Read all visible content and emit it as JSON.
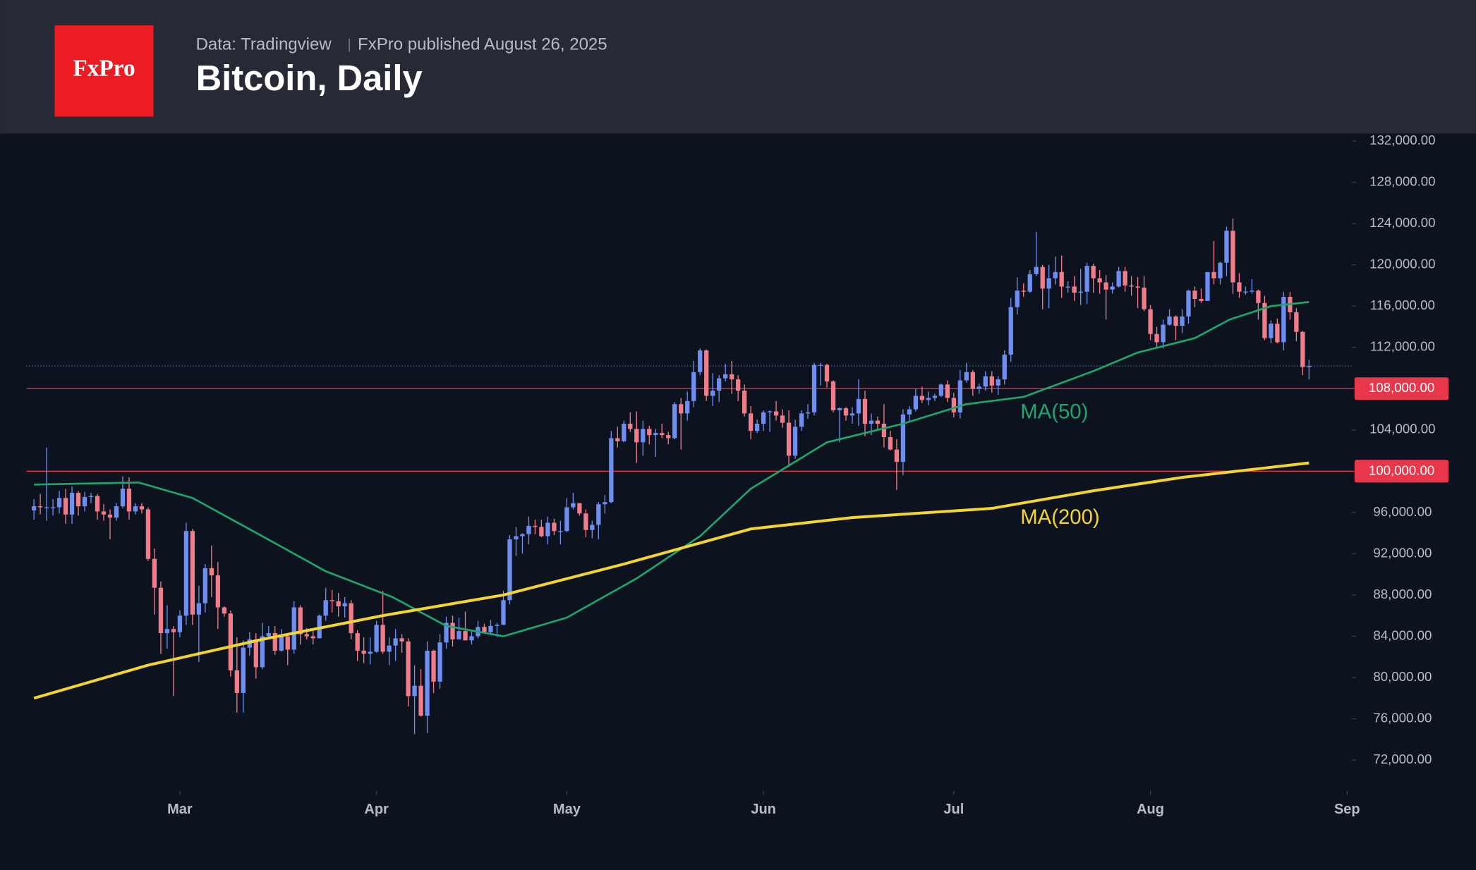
{
  "header": {
    "logo": "FxPro",
    "source": "Data: Tradingview",
    "publisher": "FxPro published August 26, 2025"
  },
  "chart_data": {
    "type": "candlestick",
    "title": "Bitcoin, Daily",
    "up_color": "#6f8ef2",
    "down_color": "#f27d8a",
    "xlim": [
      -2,
      207.5
    ],
    "ylim": [
      69000,
      133000
    ],
    "xticks": [
      {
        "value": 23,
        "label": "Mar"
      },
      {
        "value": 54,
        "label": "Apr"
      },
      {
        "value": 84,
        "label": "May"
      },
      {
        "value": 115,
        "label": "Jun"
      },
      {
        "value": 145,
        "label": "Jul"
      },
      {
        "value": 176,
        "label": "Aug"
      },
      {
        "value": 207,
        "label": "Sep"
      }
    ],
    "yticks": [
      {
        "value": 72000,
        "label": "72,000.00"
      },
      {
        "value": 76000,
        "label": "76,000.00"
      },
      {
        "value": 80000,
        "label": "80,000.00"
      },
      {
        "value": 84000,
        "label": "84,000.00"
      },
      {
        "value": 88000,
        "label": "88,000.00"
      },
      {
        "value": 92000,
        "label": "92,000.00"
      },
      {
        "value": 96000,
        "label": "96,000.00"
      },
      {
        "value": 100000,
        "label": "100,000.00"
      },
      {
        "value": 104000,
        "label": "104,000.00"
      },
      {
        "value": 108000,
        "label": "108,000.00"
      },
      {
        "value": 112000,
        "label": "112,000.00"
      },
      {
        "value": 116000,
        "label": "116,000.00"
      },
      {
        "value": 120000,
        "label": "120,000.00"
      },
      {
        "value": 124000,
        "label": "124,000.00"
      },
      {
        "value": 128000,
        "label": "128,000.00"
      },
      {
        "value": 132000,
        "label": "132,000.00"
      }
    ],
    "levels": [
      {
        "value": 108000,
        "label": "108,000.00",
        "color": "#e8364a"
      },
      {
        "value": 100000,
        "label": "100,000.00",
        "color": "#e8364a"
      }
    ],
    "candles": [
      [
        96200,
        97300,
        95300,
        96600
      ],
      [
        96600,
        97800,
        95800,
        96500
      ],
      [
        96500,
        102300,
        95200,
        96500
      ],
      [
        96500,
        97300,
        95700,
        96500
      ],
      [
        96500,
        98100,
        95900,
        97400
      ],
      [
        97400,
        98300,
        94900,
        95800
      ],
      [
        95800,
        98500,
        94900,
        97900
      ],
      [
        97900,
        98100,
        95700,
        96600
      ],
      [
        96600,
        98000,
        96100,
        97500
      ],
      [
        97500,
        97900,
        96900,
        97600
      ],
      [
        97600,
        97800,
        95300,
        96100
      ],
      [
        96100,
        96800,
        95200,
        95800
      ],
      [
        95800,
        96300,
        93400,
        95500
      ],
      [
        95500,
        96900,
        95200,
        96600
      ],
      [
        96600,
        99500,
        96400,
        98300
      ],
      [
        98300,
        99400,
        95300,
        96100
      ],
      [
        96100,
        96900,
        95800,
        96600
      ],
      [
        96600,
        96900,
        95900,
        96300
      ],
      [
        96300,
        96500,
        91300,
        91500
      ],
      [
        91500,
        92500,
        86100,
        88700
      ],
      [
        88700,
        89300,
        82300,
        84300
      ],
      [
        84300,
        87000,
        82800,
        84700
      ],
      [
        84700,
        85000,
        78200,
        84400
      ],
      [
        84400,
        86500,
        83900,
        86000
      ],
      [
        86000,
        95000,
        85100,
        94200
      ],
      [
        94200,
        94400,
        85100,
        86100
      ],
      [
        86100,
        88900,
        81500,
        87200
      ],
      [
        87200,
        91000,
        86300,
        90600
      ],
      [
        90600,
        92800,
        87800,
        89900
      ],
      [
        89900,
        91200,
        84700,
        86800
      ],
      [
        86800,
        86900,
        85900,
        86200
      ],
      [
        86200,
        86500,
        80100,
        80700
      ],
      [
        80700,
        83900,
        76600,
        78500
      ],
      [
        78500,
        83600,
        76600,
        82900
      ],
      [
        82900,
        84400,
        82100,
        83700
      ],
      [
        83700,
        84300,
        79900,
        81000
      ],
      [
        81000,
        85300,
        80800,
        84000
      ],
      [
        84000,
        85000,
        83700,
        84300
      ],
      [
        84300,
        85000,
        82200,
        82600
      ],
      [
        82600,
        84700,
        82500,
        84000
      ],
      [
        84000,
        84100,
        81200,
        82700
      ],
      [
        82700,
        87400,
        82300,
        86800
      ],
      [
        86800,
        87000,
        83200,
        84200
      ],
      [
        84200,
        84800,
        83700,
        84000
      ],
      [
        84000,
        84500,
        83200,
        83800
      ],
      [
        83800,
        86100,
        83800,
        86000
      ],
      [
        86000,
        88700,
        85500,
        87500
      ],
      [
        87500,
        88500,
        86300,
        87400
      ],
      [
        87400,
        88200,
        85900,
        86900
      ],
      [
        86900,
        87800,
        85800,
        87200
      ],
      [
        87200,
        87500,
        83700,
        84300
      ],
      [
        84300,
        84600,
        81600,
        82600
      ],
      [
        82600,
        83900,
        81400,
        82300
      ],
      [
        82300,
        83900,
        81300,
        82500
      ],
      [
        82500,
        85500,
        82400,
        85100
      ],
      [
        85100,
        88400,
        82300,
        82500
      ],
      [
        82500,
        83900,
        81200,
        83100
      ],
      [
        83100,
        84700,
        81600,
        83800
      ],
      [
        83800,
        84200,
        82400,
        83500
      ],
      [
        83500,
        83800,
        77200,
        78200
      ],
      [
        78200,
        81200,
        74500,
        79200
      ],
      [
        79200,
        80800,
        76200,
        76300
      ],
      [
        76300,
        83500,
        74600,
        82600
      ],
      [
        82600,
        82700,
        78500,
        79600
      ],
      [
        79600,
        84200,
        78900,
        83400
      ],
      [
        83400,
        85900,
        82800,
        85300
      ],
      [
        85300,
        86000,
        83000,
        83700
      ],
      [
        83700,
        85800,
        83700,
        84500
      ],
      [
        84500,
        86400,
        83600,
        83600
      ],
      [
        83600,
        84500,
        83200,
        84000
      ],
      [
        84000,
        85500,
        83800,
        84900
      ],
      [
        84900,
        85200,
        84300,
        84400
      ],
      [
        84400,
        85600,
        84300,
        85000
      ],
      [
        85000,
        85300,
        83900,
        85100
      ],
      [
        85100,
        88400,
        85100,
        87500
      ],
      [
        87500,
        93800,
        87100,
        93400
      ],
      [
        93400,
        94600,
        91800,
        93700
      ],
      [
        93700,
        94000,
        92000,
        93900
      ],
      [
        93900,
        95600,
        92900,
        94700
      ],
      [
        94700,
        95300,
        93900,
        94600
      ],
      [
        94600,
        95300,
        93600,
        93700
      ],
      [
        93700,
        95600,
        92900,
        95000
      ],
      [
        95000,
        95400,
        93800,
        94200
      ],
      [
        94200,
        95200,
        92900,
        94200
      ],
      [
        94200,
        97400,
        94100,
        96500
      ],
      [
        96500,
        97900,
        96300,
        96900
      ],
      [
        96900,
        96900,
        95700,
        95900
      ],
      [
        95900,
        96300,
        93600,
        94300
      ],
      [
        94300,
        95200,
        93500,
        94800
      ],
      [
        94800,
        97000,
        93400,
        96800
      ],
      [
        96800,
        97700,
        95900,
        97000
      ],
      [
        97000,
        103900,
        96900,
        103200
      ],
      [
        103200,
        104300,
        102300,
        102900
      ],
      [
        102900,
        104900,
        102800,
        104600
      ],
      [
        104600,
        105700,
        103800,
        104100
      ],
      [
        104100,
        105800,
        100800,
        102800
      ],
      [
        102800,
        104900,
        101500,
        104100
      ],
      [
        104100,
        104400,
        102600,
        103500
      ],
      [
        103500,
        104100,
        101400,
        103700
      ],
      [
        103700,
        104600,
        103200,
        103500
      ],
      [
        103500,
        103800,
        102600,
        103200
      ],
      [
        103200,
        106700,
        103100,
        106500
      ],
      [
        106500,
        107100,
        102100,
        105600
      ],
      [
        105600,
        107700,
        104900,
        106800
      ],
      [
        106800,
        110700,
        106200,
        109600
      ],
      [
        109600,
        111900,
        109300,
        111700
      ],
      [
        111700,
        111800,
        106800,
        107300
      ],
      [
        107300,
        109500,
        106300,
        107800
      ],
      [
        107800,
        109300,
        106700,
        109000
      ],
      [
        109000,
        110400,
        108700,
        109400
      ],
      [
        109400,
        110700,
        107500,
        108900
      ],
      [
        108900,
        109300,
        106800,
        107800
      ],
      [
        107800,
        108400,
        105300,
        105600
      ],
      [
        105600,
        106300,
        103100,
        103900
      ],
      [
        103900,
        105000,
        103700,
        104600
      ],
      [
        104600,
        105900,
        103900,
        105700
      ],
      [
        105700,
        105900,
        103800,
        105800
      ],
      [
        105800,
        106800,
        104900,
        105400
      ],
      [
        105400,
        106000,
        104200,
        104700
      ],
      [
        104700,
        105900,
        100400,
        101500
      ],
      [
        101500,
        105000,
        101200,
        104300
      ],
      [
        104300,
        105900,
        103900,
        105600
      ],
      [
        105600,
        106500,
        105100,
        105700
      ],
      [
        105700,
        110500,
        105400,
        110300
      ],
      [
        110300,
        110500,
        108300,
        110300
      ],
      [
        110300,
        110400,
        108100,
        108700
      ],
      [
        108700,
        108800,
        105700,
        105900
      ],
      [
        105900,
        106200,
        102800,
        106100
      ],
      [
        106100,
        106200,
        104900,
        105400
      ],
      [
        105400,
        106200,
        104600,
        105600
      ],
      [
        105600,
        108900,
        104400,
        107000
      ],
      [
        107000,
        107800,
        103400,
        104600
      ],
      [
        104600,
        105600,
        103500,
        104900
      ],
      [
        104900,
        105300,
        103900,
        104600
      ],
      [
        104600,
        106500,
        102300,
        103300
      ],
      [
        103300,
        103900,
        102000,
        102100
      ],
      [
        102100,
        103100,
        98200,
        100900
      ],
      [
        100900,
        106000,
        99600,
        105500
      ],
      [
        105500,
        106300,
        104700,
        106000
      ],
      [
        106000,
        108000,
        105800,
        107300
      ],
      [
        107300,
        108200,
        106600,
        106900
      ],
      [
        106900,
        107700,
        106400,
        107100
      ],
      [
        107100,
        107500,
        106800,
        107300
      ],
      [
        107300,
        108500,
        107200,
        108400
      ],
      [
        108400,
        108800,
        106700,
        107100
      ],
      [
        107100,
        107600,
        105200,
        105700
      ],
      [
        105700,
        109800,
        105100,
        108800
      ],
      [
        108800,
        110500,
        108600,
        109600
      ],
      [
        109600,
        109800,
        107300,
        108000
      ],
      [
        108000,
        108500,
        107500,
        108200
      ],
      [
        108200,
        109700,
        107800,
        109200
      ],
      [
        109200,
        109700,
        107600,
        108300
      ],
      [
        108300,
        109200,
        107400,
        108900
      ],
      [
        108900,
        111700,
        108400,
        111300
      ],
      [
        111300,
        116800,
        110600,
        115900
      ],
      [
        115900,
        118800,
        115200,
        117500
      ],
      [
        117500,
        118200,
        116900,
        117400
      ],
      [
        117400,
        119500,
        117300,
        119100
      ],
      [
        119100,
        123200,
        118900,
        119800
      ],
      [
        119800,
        120000,
        115700,
        117700
      ],
      [
        117700,
        120000,
        115800,
        118700
      ],
      [
        118700,
        120800,
        118100,
        119300
      ],
      [
        119300,
        120900,
        116800,
        117900
      ],
      [
        117900,
        118400,
        117300,
        117900
      ],
      [
        117900,
        118900,
        116500,
        117300
      ],
      [
        117300,
        119600,
        116100,
        117400
      ],
      [
        117400,
        120200,
        116200,
        119900
      ],
      [
        119900,
        120100,
        117300,
        118700
      ],
      [
        118700,
        119500,
        117200,
        118300
      ],
      [
        118300,
        119000,
        114700,
        117600
      ],
      [
        117600,
        118300,
        117200,
        117900
      ],
      [
        117900,
        119800,
        117800,
        119400
      ],
      [
        119400,
        119800,
        117400,
        118000
      ],
      [
        118000,
        118900,
        117000,
        117900
      ],
      [
        117900,
        118800,
        115800,
        117800
      ],
      [
        117800,
        118900,
        115500,
        115700
      ],
      [
        115700,
        116100,
        112700,
        113300
      ],
      [
        113300,
        114000,
        112000,
        112500
      ],
      [
        112500,
        114700,
        111900,
        114200
      ],
      [
        114200,
        115700,
        114100,
        115000
      ],
      [
        115000,
        115100,
        112700,
        114100
      ],
      [
        114100,
        115700,
        113400,
        115000
      ],
      [
        115000,
        117600,
        114300,
        117500
      ],
      [
        117500,
        117900,
        115900,
        116700
      ],
      [
        116700,
        117700,
        116300,
        116500
      ],
      [
        116500,
        119300,
        116500,
        119300
      ],
      [
        119300,
        122300,
        118100,
        118700
      ],
      [
        118700,
        120300,
        118100,
        120200
      ],
      [
        120200,
        123700,
        118900,
        123300
      ],
      [
        123300,
        124500,
        117200,
        118300
      ],
      [
        118300,
        119200,
        116800,
        117400
      ],
      [
        117400,
        117900,
        117100,
        117400
      ],
      [
        117400,
        118600,
        117200,
        117500
      ],
      [
        117500,
        117600,
        114700,
        116300
      ],
      [
        116300,
        117000,
        112700,
        112900
      ],
      [
        112900,
        114600,
        112400,
        114300
      ],
      [
        114300,
        114800,
        112400,
        112500
      ],
      [
        112500,
        117400,
        111700,
        116900
      ],
      [
        116900,
        117400,
        114700,
        115400
      ],
      [
        115400,
        115800,
        112600,
        113500
      ],
      [
        113500,
        113600,
        109300,
        110100
      ],
      [
        110100,
        110800,
        108900,
        110200
      ]
    ],
    "series": [
      {
        "name": "MA(50)",
        "color": "#1fa56c",
        "x": [
          0,
          16.5,
          25,
          36,
          46,
          56.5,
          65,
          74,
          84,
          95,
          105,
          113,
          125,
          137,
          147,
          156,
          167,
          174,
          183,
          188.5,
          195,
          201
        ],
        "values": [
          98700,
          98900,
          97400,
          93700,
          90300,
          87800,
          85000,
          84000,
          85800,
          89600,
          93700,
          98300,
          102800,
          104600,
          106500,
          107200,
          109700,
          111500,
          112900,
          114700,
          116000,
          116400
        ]
      },
      {
        "name": "MA(200)",
        "color": "#f2d531",
        "x": [
          0,
          18,
          36,
          55,
          74,
          93,
          113,
          129,
          151,
          167,
          181,
          201
        ],
        "values": [
          78000,
          81200,
          83700,
          86000,
          88000,
          91000,
          94400,
          95500,
          96400,
          98100,
          99400,
          100800
        ]
      }
    ]
  }
}
